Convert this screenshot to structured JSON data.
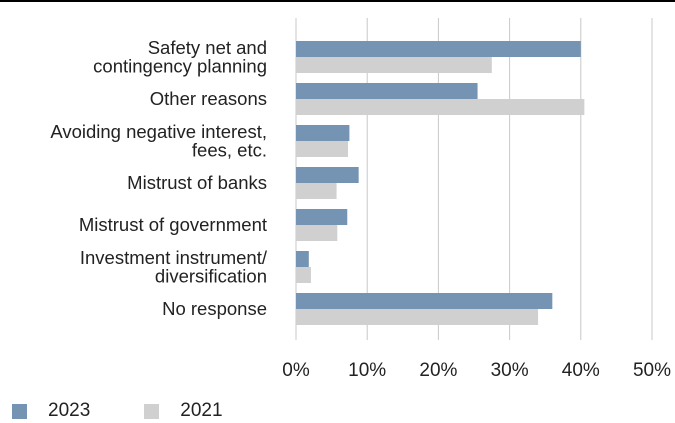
{
  "chart_data": {
    "type": "bar",
    "orientation": "horizontal",
    "categories": [
      [
        "Safety net and",
        "contingency planning"
      ],
      [
        "Other reasons"
      ],
      [
        "Avoiding negative interest,",
        "fees, etc."
      ],
      [
        "Mistrust of banks"
      ],
      [
        "Mistrust of government"
      ],
      [
        "Investment instrument/",
        "diversification"
      ],
      [
        "No response"
      ]
    ],
    "series": [
      {
        "name": "2023",
        "color": "#7594b3",
        "values": [
          40,
          25.5,
          7.5,
          8.8,
          7.2,
          1.8,
          36
        ]
      },
      {
        "name": "2021",
        "color": "#d0d0d0",
        "values": [
          27.5,
          40.5,
          7.3,
          5.7,
          5.8,
          2.1,
          34
        ]
      }
    ],
    "xlim": [
      0,
      50
    ],
    "xticks": [
      0,
      10,
      20,
      30,
      40,
      50
    ],
    "xtick_labels": [
      "0%",
      "10%",
      "20%",
      "30%",
      "40%",
      "50%"
    ],
    "grid": "vertical",
    "legend_position": "bottom-left",
    "title": "",
    "xlabel": "",
    "ylabel": ""
  }
}
